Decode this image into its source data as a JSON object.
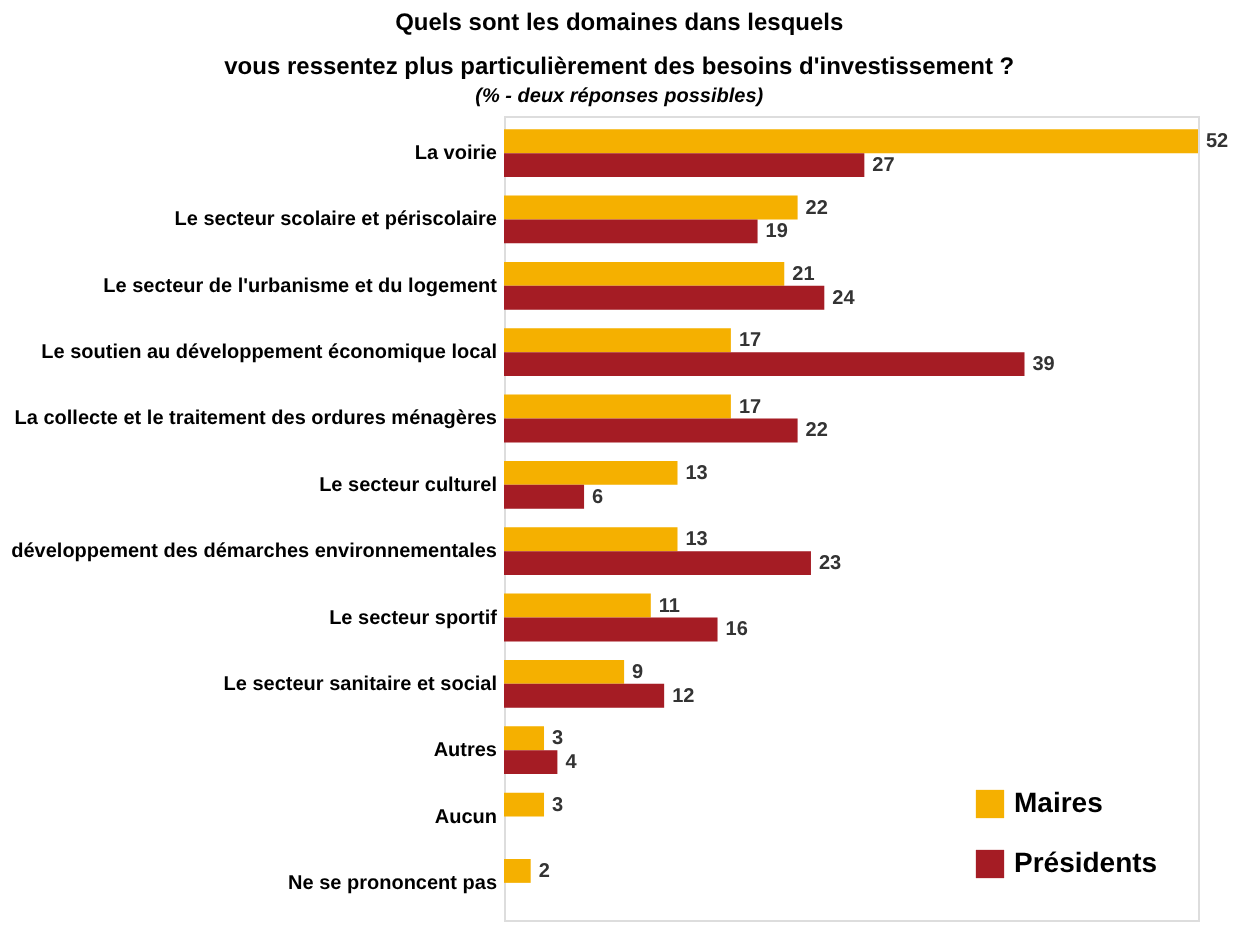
{
  "chart_data": {
    "type": "bar",
    "orientation": "horizontal",
    "title": [
      "Quels sont les domaines dans lesquels",
      "vous ressentez plus particulièrement des besoins d'investissement ?"
    ],
    "subtitle": "(% - deux réponses possibles)",
    "categories": [
      "La voirie",
      "Le secteur scolaire et périscolaire",
      "Le secteur de l'urbanisme et du logement",
      "Le soutien au développement économique local",
      "La collecte et le traitement des ordures ménagères",
      "Le secteur culturel",
      "développement des démarches environnementales",
      "Le secteur sportif",
      "Le secteur sanitaire et social",
      "Autres",
      "Aucun",
      "Ne se prononcent pas"
    ],
    "series": [
      {
        "name": "Maires",
        "color": "#f5b000",
        "values": [
          52,
          22,
          21,
          17,
          17,
          13,
          13,
          11,
          9,
          3,
          3,
          2
        ]
      },
      {
        "name": "Présidents",
        "color": "#a51c24",
        "values": [
          27,
          19,
          24,
          39,
          22,
          6,
          23,
          16,
          12,
          4,
          null,
          null
        ]
      }
    ],
    "data_labels": true,
    "legend": "bottom right"
  }
}
